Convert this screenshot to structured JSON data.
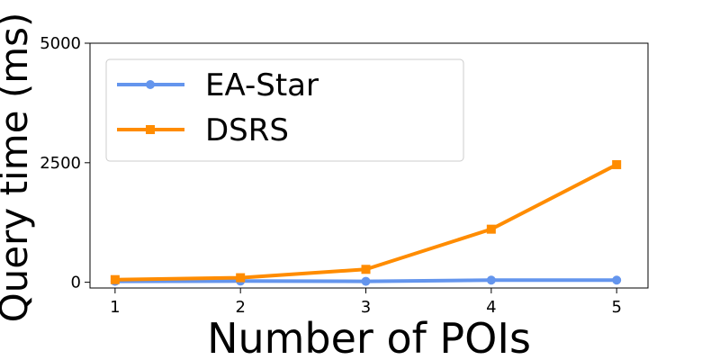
{
  "chart_data": {
    "type": "line",
    "title": "",
    "xlabel": "Number of POIs",
    "ylabel": "Query time (ms)",
    "x": [
      1,
      2,
      3,
      4,
      5
    ],
    "xlim": [
      0.8,
      5.25
    ],
    "ylim": [
      -120,
      5000
    ],
    "xticks": [
      "1",
      "2",
      "3",
      "4",
      "5"
    ],
    "yticks": [
      0,
      2500,
      5000
    ],
    "ytick_labels": [
      "0",
      "2500",
      "5000"
    ],
    "grid": false,
    "legend_position": "upper-left",
    "series": [
      {
        "name": "EA-Star",
        "values": [
          20,
          25,
          20,
          45,
          45
        ],
        "color": "#6495ED",
        "marker": "circle"
      },
      {
        "name": "DSRS",
        "values": [
          55,
          95,
          270,
          1110,
          2460
        ],
        "color": "#FF8C00",
        "marker": "square"
      }
    ]
  }
}
